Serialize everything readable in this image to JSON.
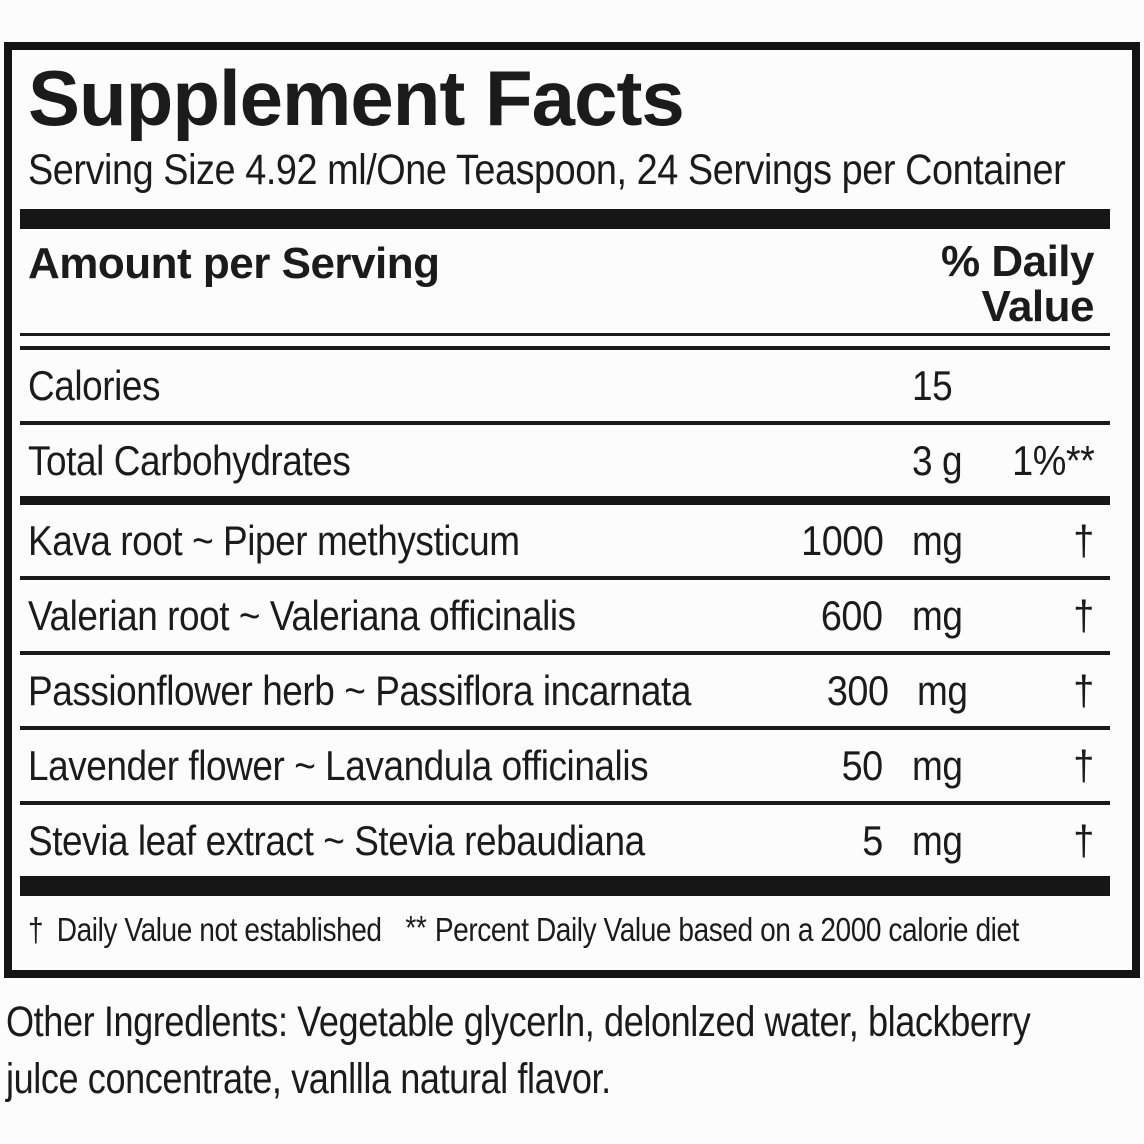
{
  "colors": {
    "text": "#1b1b1b",
    "rule": "#1a1a1a",
    "bar": "#161616",
    "background": "#fcfcfc"
  },
  "label": {
    "title": "Supplement Facts",
    "serving_info": "Serving Size 4.92 ml/One Teaspoon, 24 Servings per Container",
    "header": {
      "amount_col": "Amount per Serving",
      "dv_col_line1": "% Daily",
      "dv_col_line2": "Value"
    },
    "rows": [
      {
        "name": "Calories",
        "amount": "",
        "unit": "15",
        "dv": "",
        "divider_after": "thin"
      },
      {
        "name": "Total Carbohydrates",
        "amount": "",
        "unit": "3 g",
        "dv": "1%**",
        "divider_after": "thick"
      },
      {
        "name": "Kava root ~ Piper methysticum",
        "amount": "1000",
        "unit": "mg",
        "dv": "†",
        "divider_after": "thin"
      },
      {
        "name": "Valerian root ~ Valeriana officinalis",
        "amount": "600",
        "unit": "mg",
        "dv": "†",
        "divider_after": "thin"
      },
      {
        "name": "Passionflower herb ~ Passiflora incarnata",
        "amount": "300",
        "unit": "mg",
        "dv": "†",
        "divider_after": "thin"
      },
      {
        "name": "Lavender flower ~ Lavandula officinalis",
        "amount": "50",
        "unit": "mg",
        "dv": "†",
        "divider_after": "thin"
      },
      {
        "name": "Stevia leaf extract ~ Stevia rebaudiana",
        "amount": "5",
        "unit": "mg",
        "dv": "†",
        "divider_after": "none"
      }
    ],
    "footnote": {
      "dagger_symbol": "†",
      "dagger_text": "Daily Value not established",
      "asterisk_symbol": "**",
      "asterisk_text": "Percent Daily Value based on a 2000 calorie diet"
    }
  },
  "other_ingredients": {
    "lines": [
      "Other Ingredlents: Vegetable glycerln, delonlzed water, blackberry",
      "julce concentrate, vanllla natural flavor."
    ]
  }
}
